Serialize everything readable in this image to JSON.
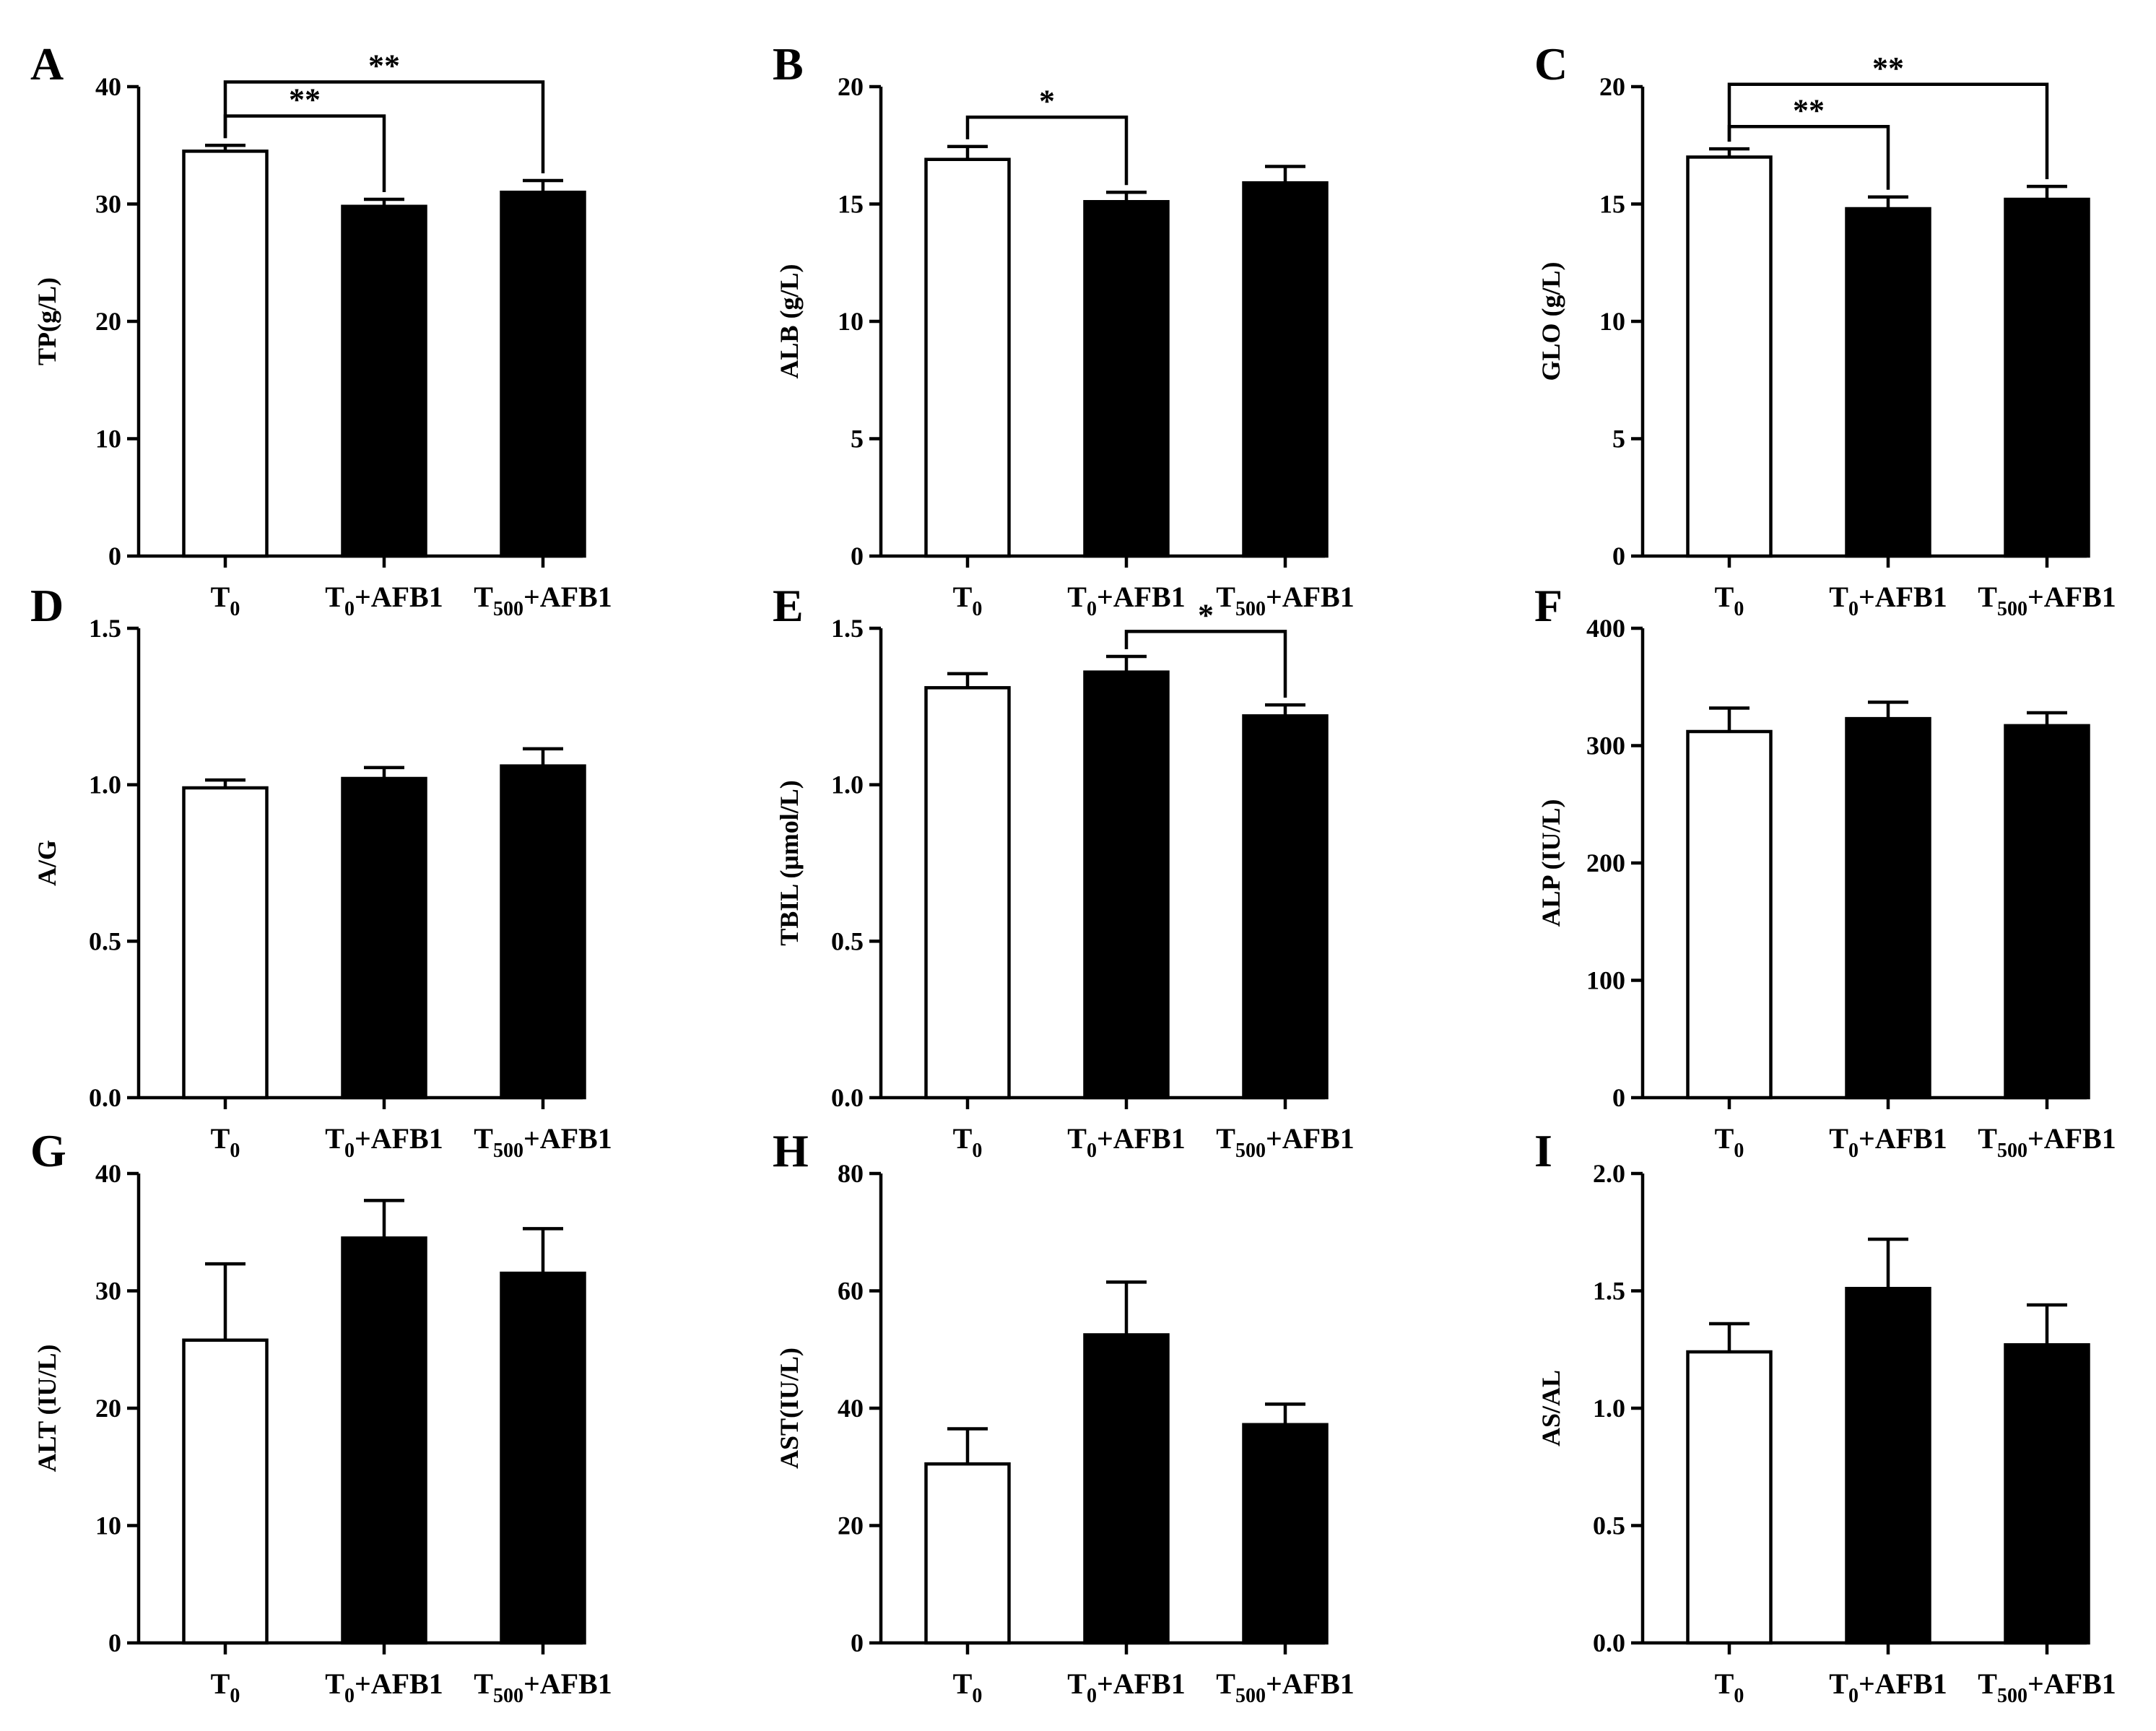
{
  "figure": {
    "background": "#ffffff",
    "colors": {
      "control_fill": "#ffffff",
      "treatment_fill": "#000000",
      "stroke": "#000000"
    }
  },
  "chart_data": [
    {
      "panel": "A",
      "type": "bar",
      "ylabel": "TP(g/L)",
      "categories": [
        {
          "main": "T",
          "sub": "0",
          "rest": ""
        },
        {
          "main": "T",
          "sub": "0",
          "rest": "+AFB1"
        },
        {
          "main": "T",
          "sub": "500",
          "rest": "+AFB1"
        }
      ],
      "values": [
        34.5,
        29.8,
        31.0
      ],
      "errors": [
        0.5,
        0.6,
        1.0
      ],
      "fills": [
        "white",
        "black",
        "black"
      ],
      "ylim": [
        0,
        40
      ],
      "yticks": [
        "0",
        "10",
        "20",
        "30",
        "40"
      ],
      "significance": [
        {
          "from": 0,
          "to": 1,
          "label": "**",
          "y": 37.5
        },
        {
          "from": 0,
          "to": 2,
          "label": "**",
          "y": 40.4
        }
      ]
    },
    {
      "panel": "B",
      "type": "bar",
      "ylabel": "ALB (g/L)",
      "categories": [
        {
          "main": "T",
          "sub": "0",
          "rest": ""
        },
        {
          "main": "T",
          "sub": "0",
          "rest": "+AFB1"
        },
        {
          "main": "T",
          "sub": "500",
          "rest": "+AFB1"
        }
      ],
      "values": [
        16.9,
        15.1,
        15.9
      ],
      "errors": [
        0.55,
        0.4,
        0.7
      ],
      "fills": [
        "white",
        "black",
        "black"
      ],
      "ylim": [
        0,
        20
      ],
      "yticks": [
        "0",
        "5",
        "10",
        "15",
        "20"
      ],
      "significance": [
        {
          "from": 0,
          "to": 1,
          "label": "*",
          "y": 18.7
        }
      ]
    },
    {
      "panel": "C",
      "type": "bar",
      "ylabel": "GLO (g/L)",
      "categories": [
        {
          "main": "T",
          "sub": "0",
          "rest": ""
        },
        {
          "main": "T",
          "sub": "0",
          "rest": "+AFB1"
        },
        {
          "main": "T",
          "sub": "500",
          "rest": "+AFB1"
        }
      ],
      "values": [
        17.0,
        14.8,
        15.2
      ],
      "errors": [
        0.35,
        0.5,
        0.55
      ],
      "fills": [
        "white",
        "black",
        "black"
      ],
      "ylim": [
        0,
        20
      ],
      "yticks": [
        "0",
        "5",
        "10",
        "15",
        "20"
      ],
      "significance": [
        {
          "from": 0,
          "to": 1,
          "label": "**",
          "y": 18.3
        },
        {
          "from": 0,
          "to": 2,
          "label": "**",
          "y": 20.1
        }
      ]
    },
    {
      "panel": "D",
      "type": "bar",
      "ylabel": "A/G",
      "categories": [
        {
          "main": "T",
          "sub": "0",
          "rest": ""
        },
        {
          "main": "T",
          "sub": "0",
          "rest": "+AFB1"
        },
        {
          "main": "T",
          "sub": "500",
          "rest": "+AFB1"
        }
      ],
      "values": [
        0.99,
        1.02,
        1.06
      ],
      "errors": [
        0.025,
        0.035,
        0.055
      ],
      "fills": [
        "white",
        "black",
        "black"
      ],
      "ylim": [
        0,
        1.5
      ],
      "yticks": [
        "0.0",
        "0.5",
        "1.0",
        "1.5"
      ],
      "significance": []
    },
    {
      "panel": "E",
      "type": "bar",
      "ylabel": "TBIL (μmol/L)",
      "categories": [
        {
          "main": "T",
          "sub": "0",
          "rest": ""
        },
        {
          "main": "T",
          "sub": "0",
          "rest": "+AFB1"
        },
        {
          "main": "T",
          "sub": "500",
          "rest": "+AFB1"
        }
      ],
      "values": [
        1.31,
        1.36,
        1.22
      ],
      "errors": [
        0.045,
        0.05,
        0.035
      ],
      "fills": [
        "white",
        "black",
        "black"
      ],
      "ylim": [
        0,
        1.5
      ],
      "yticks": [
        "0.0",
        "0.5",
        "1.0",
        "1.5"
      ],
      "significance": [
        {
          "from": 1,
          "to": 2,
          "label": "*",
          "y": 1.49
        }
      ]
    },
    {
      "panel": "F",
      "type": "bar",
      "ylabel": "ALP (IU/L)",
      "categories": [
        {
          "main": "T",
          "sub": "0",
          "rest": ""
        },
        {
          "main": "T",
          "sub": "0",
          "rest": "+AFB1"
        },
        {
          "main": "T",
          "sub": "500",
          "rest": "+AFB1"
        }
      ],
      "values": [
        312,
        323,
        317
      ],
      "errors": [
        20,
        14,
        11
      ],
      "fills": [
        "white",
        "black",
        "black"
      ],
      "ylim": [
        0,
        400
      ],
      "yticks": [
        "0",
        "100",
        "200",
        "300",
        "400"
      ],
      "significance": []
    },
    {
      "panel": "G",
      "type": "bar",
      "ylabel": "ALT (IU/L)",
      "categories": [
        {
          "main": "T",
          "sub": "0",
          "rest": ""
        },
        {
          "main": "T",
          "sub": "0",
          "rest": "+AFB1"
        },
        {
          "main": "T",
          "sub": "500",
          "rest": "+AFB1"
        }
      ],
      "values": [
        25.8,
        34.5,
        31.5
      ],
      "errors": [
        6.5,
        3.2,
        3.8
      ],
      "fills": [
        "white",
        "black",
        "black"
      ],
      "ylim": [
        0,
        40
      ],
      "yticks": [
        "0",
        "10",
        "20",
        "30",
        "40"
      ],
      "significance": []
    },
    {
      "panel": "H",
      "type": "bar",
      "ylabel": "AST(IU/L)",
      "categories": [
        {
          "main": "T",
          "sub": "0",
          "rest": ""
        },
        {
          "main": "T",
          "sub": "0",
          "rest": "+AFB1"
        },
        {
          "main": "T",
          "sub": "500",
          "rest": "+AFB1"
        }
      ],
      "values": [
        30.5,
        52.5,
        37.2
      ],
      "errors": [
        6.0,
        9.0,
        3.5
      ],
      "fills": [
        "white",
        "black",
        "black"
      ],
      "ylim": [
        0,
        80
      ],
      "yticks": [
        "0",
        "20",
        "40",
        "60",
        "80"
      ],
      "significance": []
    },
    {
      "panel": "I",
      "type": "bar",
      "ylabel": "AS/AL",
      "categories": [
        {
          "main": "T",
          "sub": "0",
          "rest": ""
        },
        {
          "main": "T",
          "sub": "0",
          "rest": "+AFB1"
        },
        {
          "main": "T",
          "sub": "500",
          "rest": "+AFB1"
        }
      ],
      "values": [
        1.24,
        1.51,
        1.27
      ],
      "errors": [
        0.12,
        0.21,
        0.17
      ],
      "fills": [
        "white",
        "black",
        "black"
      ],
      "ylim": [
        0,
        2.0
      ],
      "yticks": [
        "0.0",
        "0.5",
        "1.0",
        "1.5",
        "2.0"
      ],
      "significance": []
    }
  ]
}
